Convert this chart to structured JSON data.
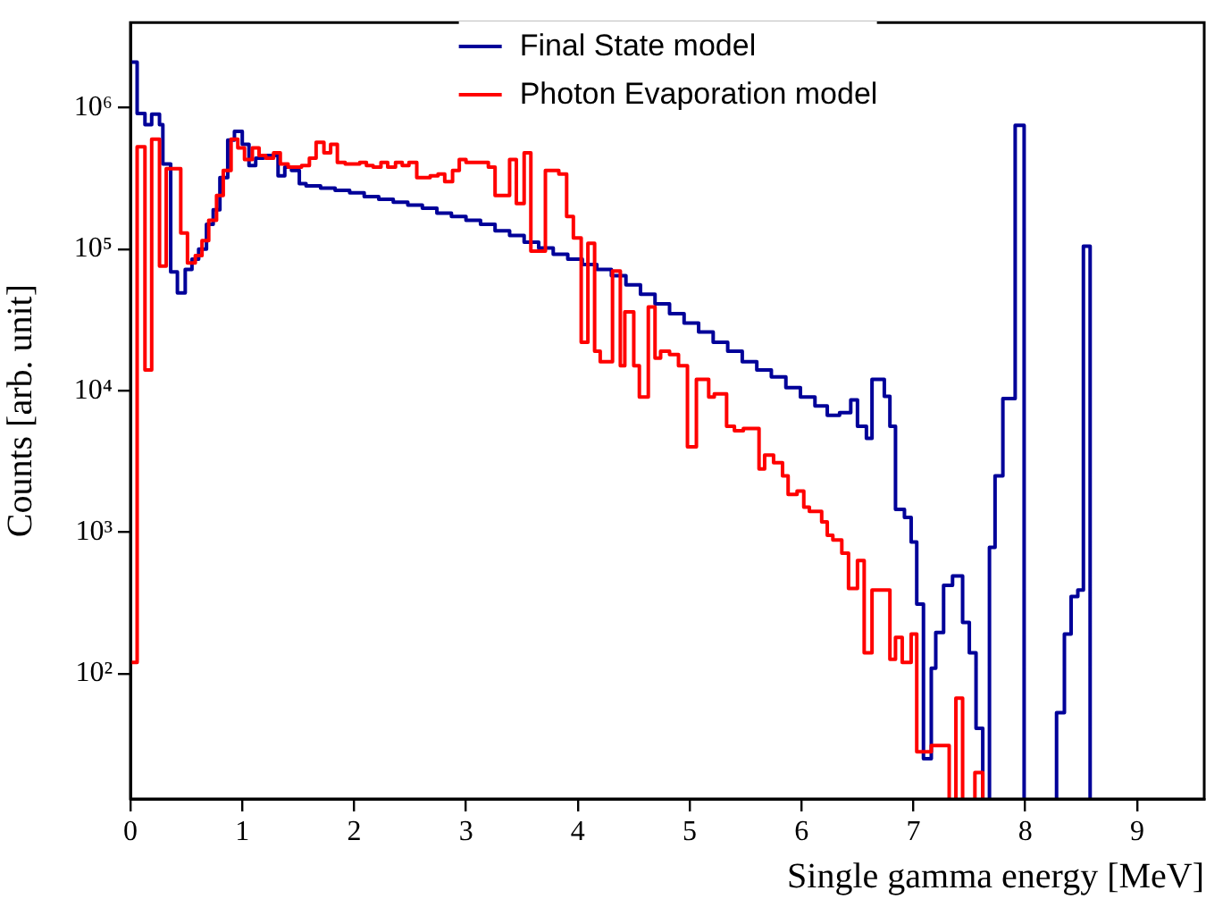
{
  "chart_data": {
    "type": "step",
    "xlabel": "Single gamma energy [MeV]",
    "ylabel": "Counts [arb. unit]",
    "log": "y",
    "legend": "top",
    "xlim": [
      0,
      9.6
    ],
    "xticks": [
      0,
      1,
      2,
      3,
      4,
      5,
      6,
      7,
      8,
      9
    ],
    "ylim": [
      13,
      4000000
    ],
    "yticks": [
      {
        "value": 100,
        "label": "10²"
      },
      {
        "value": 1000,
        "label": "10³"
      },
      {
        "value": 10000,
        "label": "10⁴"
      },
      {
        "value": 100000,
        "label": "10⁵"
      },
      {
        "value": 1000000,
        "label": "10⁶"
      }
    ],
    "series": [
      {
        "name": "Final State model",
        "color": "#000099",
        "x": [
          0,
          0.06,
          0.13,
          0.19,
          0.26,
          0.29,
          0.36,
          0.42,
          0.49,
          0.55,
          0.61,
          0.68,
          0.74,
          0.8,
          0.87,
          0.93,
          1.0,
          1.06,
          1.12,
          1.19,
          1.25,
          1.32,
          1.38,
          1.44,
          1.51,
          1.57,
          1.7,
          1.83,
          1.96,
          2.09,
          2.22,
          2.35,
          2.48,
          2.61,
          2.74,
          2.87,
          3.0,
          3.13,
          3.26,
          3.39,
          3.52,
          3.65,
          3.78,
          3.91,
          4.04,
          4.17,
          4.3,
          4.43,
          4.56,
          4.69,
          4.82,
          4.95,
          5.08,
          5.21,
          5.34,
          5.47,
          5.6,
          5.73,
          5.86,
          5.99,
          6.12,
          6.23,
          6.34,
          6.44,
          6.5,
          6.58,
          6.63,
          6.74,
          6.79,
          6.84,
          6.92,
          6.98,
          7.03,
          7.09,
          7.16,
          7.2,
          7.27,
          7.35,
          7.44,
          7.5,
          7.56,
          7.62,
          7.68,
          7.73,
          7.8,
          7.91,
          7.99,
          8.28,
          8.35,
          8.41,
          8.47,
          8.52,
          8.58
        ],
        "values": [
          2100000,
          910000,
          760000,
          900000,
          760000,
          400000,
          69000,
          49000,
          72000,
          85000,
          100000,
          150000,
          190000,
          320000,
          590000,
          680000,
          550000,
          390000,
          440000,
          460000,
          460000,
          330000,
          380000,
          360000,
          290000,
          280000,
          270000,
          260000,
          250000,
          235000,
          225000,
          215000,
          205000,
          195000,
          180000,
          170000,
          160000,
          150000,
          135000,
          125000,
          112000,
          102000,
          92000,
          85000,
          78000,
          72000,
          65000,
          56000,
          48000,
          41000,
          35000,
          30000,
          26000,
          22000,
          19000,
          16000,
          14000,
          12500,
          10500,
          9000,
          7800,
          6700,
          7000,
          8600,
          5600,
          4600,
          12000,
          9100,
          5600,
          1450,
          1270,
          850,
          310,
          25,
          109,
          195,
          420,
          490,
          230,
          140,
          41,
          null,
          780,
          2500,
          8800,
          750000,
          null,
          53,
          190,
          350,
          390,
          105000,
          105000
        ]
      },
      {
        "name": "Photon Evaporation model",
        "color": "#ff0000",
        "x": [
          0,
          0.06,
          0.13,
          0.19,
          0.26,
          0.32,
          0.45,
          0.51,
          0.58,
          0.64,
          0.7,
          0.77,
          0.83,
          0.9,
          0.96,
          1.02,
          1.09,
          1.15,
          1.21,
          1.28,
          1.34,
          1.41,
          1.53,
          1.6,
          1.66,
          1.73,
          1.79,
          1.85,
          1.92,
          2.05,
          2.11,
          2.17,
          2.24,
          2.3,
          2.37,
          2.43,
          2.49,
          2.56,
          2.68,
          2.75,
          2.81,
          2.88,
          2.94,
          3.0,
          3.13,
          3.2,
          3.26,
          3.39,
          3.45,
          3.52,
          3.58,
          3.71,
          3.83,
          3.9,
          3.96,
          4.03,
          4.09,
          4.15,
          4.2,
          4.31,
          4.38,
          4.42,
          4.5,
          4.55,
          4.63,
          4.69,
          4.74,
          4.82,
          4.9,
          4.98,
          5.06,
          5.17,
          5.22,
          5.33,
          5.4,
          5.48,
          5.62,
          5.67,
          5.75,
          5.83,
          5.88,
          5.96,
          6.02,
          6.07,
          6.18,
          6.23,
          6.28,
          6.36,
          6.42,
          6.5,
          6.56,
          6.63,
          6.79,
          6.84,
          6.9,
          6.98,
          7.03,
          7.16,
          7.32,
          7.38,
          7.44,
          7.55,
          7.62
        ],
        "values": [
          120,
          530000,
          14000,
          600000,
          76000,
          370000,
          130000,
          80000,
          90000,
          115000,
          160000,
          240000,
          360000,
          600000,
          520000,
          430000,
          520000,
          460000,
          440000,
          480000,
          400000,
          380000,
          390000,
          440000,
          570000,
          480000,
          550000,
          410000,
          400000,
          410000,
          390000,
          380000,
          410000,
          380000,
          410000,
          390000,
          410000,
          320000,
          330000,
          340000,
          300000,
          360000,
          430000,
          410000,
          410000,
          380000,
          240000,
          430000,
          210000,
          480000,
          97000,
          360000,
          340000,
          170000,
          120000,
          22000,
          110000,
          19000,
          16000,
          70000,
          15000,
          36000,
          15000,
          9000,
          39000,
          17000,
          19000,
          18000,
          15000,
          4000,
          12000,
          9000,
          9500,
          5600,
          5200,
          5400,
          2800,
          3500,
          3100,
          2500,
          1850,
          1950,
          1500,
          1400,
          1180,
          950,
          880,
          710,
          400,
          630,
          140,
          390,
          126,
          180,
          120,
          190,
          28,
          31,
          null,
          67,
          null,
          20,
          20
        ]
      }
    ]
  }
}
